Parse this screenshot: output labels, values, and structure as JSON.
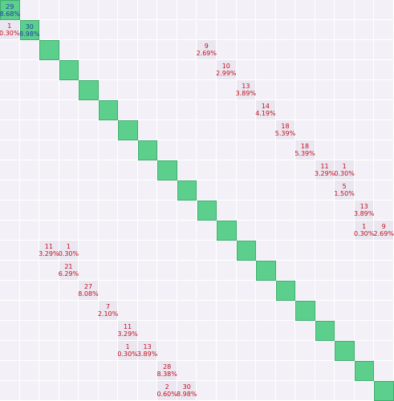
{
  "grid": {
    "rows": [
      [
        {
          "count": "29",
          "percent": "8.68%"
        },
        null,
        null,
        null,
        null,
        null,
        null,
        null,
        null,
        null,
        null,
        null,
        null,
        null,
        null,
        null,
        null,
        null,
        null,
        null
      ],
      [
        {
          "count": "1",
          "percent": "0.30%"
        },
        {
          "count": "30",
          "percent": "8.98%"
        },
        null,
        null,
        null,
        null,
        null,
        null,
        null,
        null,
        null,
        null,
        null,
        null,
        null,
        null,
        null,
        null,
        null,
        null
      ],
      [
        null,
        null,
        null,
        null,
        null,
        null,
        null,
        null,
        null,
        null,
        {
          "count": "9",
          "percent": "2.69%"
        },
        null,
        null,
        null,
        null,
        null,
        null,
        null,
        null,
        null
      ],
      [
        null,
        null,
        null,
        null,
        null,
        null,
        null,
        null,
        null,
        null,
        null,
        {
          "count": "10",
          "percent": "2.99%"
        },
        null,
        null,
        null,
        null,
        null,
        null,
        null,
        null
      ],
      [
        null,
        null,
        null,
        null,
        null,
        null,
        null,
        null,
        null,
        null,
        null,
        null,
        {
          "count": "13",
          "percent": "3.89%"
        },
        null,
        null,
        null,
        null,
        null,
        null,
        null
      ],
      [
        null,
        null,
        null,
        null,
        null,
        null,
        null,
        null,
        null,
        null,
        null,
        null,
        null,
        {
          "count": "14",
          "percent": "4.19%"
        },
        null,
        null,
        null,
        null,
        null,
        null
      ],
      [
        null,
        null,
        null,
        null,
        null,
        null,
        null,
        null,
        null,
        null,
        null,
        null,
        null,
        null,
        {
          "count": "18",
          "percent": "5.39%"
        },
        null,
        null,
        null,
        null,
        null
      ],
      [
        null,
        null,
        null,
        null,
        null,
        null,
        null,
        null,
        null,
        null,
        null,
        null,
        null,
        null,
        null,
        {
          "count": "18",
          "percent": "5.39%"
        },
        null,
        null,
        null,
        null
      ],
      [
        null,
        null,
        null,
        null,
        null,
        null,
        null,
        null,
        null,
        null,
        null,
        null,
        null,
        null,
        null,
        null,
        {
          "count": "11",
          "percent": "3.29%"
        },
        {
          "count": "1",
          "percent": "0.30%"
        },
        null,
        null
      ],
      [
        null,
        null,
        null,
        null,
        null,
        null,
        null,
        null,
        null,
        null,
        null,
        null,
        null,
        null,
        null,
        null,
        null,
        {
          "count": "5",
          "percent": "1.50%"
        },
        null,
        null
      ],
      [
        null,
        null,
        null,
        null,
        null,
        null,
        null,
        null,
        null,
        null,
        null,
        null,
        null,
        null,
        null,
        null,
        null,
        null,
        {
          "count": "13",
          "percent": "3.89%"
        },
        null
      ],
      [
        null,
        null,
        null,
        null,
        null,
        null,
        null,
        null,
        null,
        null,
        null,
        null,
        null,
        null,
        null,
        null,
        null,
        null,
        {
          "count": "1",
          "percent": "0.30%"
        },
        {
          "count": "9",
          "percent": "2.69%"
        }
      ],
      [
        null,
        null,
        {
          "count": "11",
          "percent": "3.29%"
        },
        {
          "count": "1",
          "percent": "0.30%"
        },
        null,
        null,
        null,
        null,
        null,
        null,
        null,
        null,
        null,
        null,
        null,
        null,
        null,
        null,
        null,
        null
      ],
      [
        null,
        null,
        null,
        {
          "count": "21",
          "percent": "6.29%"
        },
        null,
        null,
        null,
        null,
        null,
        null,
        null,
        null,
        null,
        null,
        null,
        null,
        null,
        null,
        null,
        null
      ],
      [
        null,
        null,
        null,
        null,
        {
          "count": "27",
          "percent": "8.08%"
        },
        null,
        null,
        null,
        null,
        null,
        null,
        null,
        null,
        null,
        null,
        null,
        null,
        null,
        null,
        null
      ],
      [
        null,
        null,
        null,
        null,
        null,
        {
          "count": "7",
          "percent": "2.10%"
        },
        null,
        null,
        null,
        null,
        null,
        null,
        null,
        null,
        null,
        null,
        null,
        null,
        null,
        null
      ],
      [
        null,
        null,
        null,
        null,
        null,
        null,
        {
          "count": "11",
          "percent": "3.29%"
        },
        null,
        null,
        null,
        null,
        null,
        null,
        null,
        null,
        null,
        null,
        null,
        null,
        null
      ],
      [
        null,
        null,
        null,
        null,
        null,
        null,
        {
          "count": "1",
          "percent": "0.30%"
        },
        {
          "count": "13",
          "percent": "3.89%"
        },
        null,
        null,
        null,
        null,
        null,
        null,
        null,
        null,
        null,
        null,
        null,
        null
      ],
      [
        null,
        null,
        null,
        null,
        null,
        null,
        null,
        null,
        {
          "count": "28",
          "percent": "8.38%"
        },
        null,
        null,
        null,
        null,
        null,
        null,
        null,
        null,
        null,
        null,
        null
      ],
      [
        null,
        null,
        null,
        null,
        null,
        null,
        null,
        null,
        {
          "count": "2",
          "percent": "0.60%"
        },
        {
          "count": "30",
          "percent": "8.98%"
        },
        null,
        null,
        null,
        null,
        null,
        null,
        null,
        null,
        null,
        null
      ]
    ]
  }
}
